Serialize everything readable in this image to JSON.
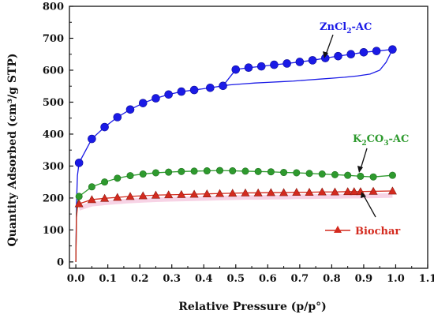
{
  "chart_data": {
    "type": "scatter",
    "title": "",
    "xlabel": "Relative Pressure (p/p°)",
    "ylabel": "Quantity Adsorbed (cm³/g STP)",
    "xlim": [
      -0.02,
      1.1
    ],
    "ylim": [
      -20,
      800
    ],
    "xticks": [
      "0.0",
      "0.1",
      "0.2",
      "0.3",
      "0.4",
      "0.5",
      "0.6",
      "0.7",
      "0.8",
      "0.9",
      "1.0",
      "1.1"
    ],
    "yticks": [
      "0",
      "100",
      "200",
      "300",
      "400",
      "500",
      "600",
      "700",
      "800"
    ],
    "series": [
      {
        "name": "ZnCl₂-AC",
        "color": "#1a1ae6",
        "marker": "circle",
        "adsorption": {
          "x": [
            0.01,
            0.05,
            0.09,
            0.13,
            0.17,
            0.21,
            0.25,
            0.29,
            0.33,
            0.37,
            0.42,
            0.46,
            0.5,
            0.54,
            0.58,
            0.62,
            0.66,
            0.7,
            0.74,
            0.78,
            0.82,
            0.86,
            0.9,
            0.94,
            0.99
          ],
          "y": [
            310,
            385,
            422,
            453,
            477,
            497,
            512,
            524,
            533,
            538,
            545,
            551,
            602,
            608,
            612,
            617,
            621,
            626,
            631,
            638,
            644,
            650,
            656,
            660,
            665
          ]
        },
        "desorption": {
          "x": [
            0.99,
            0.97,
            0.95,
            0.92,
            0.88,
            0.84,
            0.8,
            0.76,
            0.72,
            0.68,
            0.64,
            0.6,
            0.56,
            0.52,
            0.48,
            0.46
          ],
          "y": [
            665,
            625,
            600,
            588,
            582,
            578,
            575,
            572,
            569,
            566,
            564,
            562,
            560,
            557,
            554,
            551
          ]
        }
      },
      {
        "name": "K₂CO₃-AC",
        "color": "#2e9a2e",
        "marker": "circle",
        "adsorption": {
          "x": [
            0.01,
            0.05,
            0.09,
            0.13,
            0.17,
            0.21,
            0.25,
            0.29,
            0.33,
            0.37,
            0.41,
            0.45,
            0.49,
            0.53,
            0.57,
            0.61,
            0.65,
            0.69,
            0.73,
            0.77,
            0.81,
            0.85,
            0.89,
            0.93,
            0.99
          ],
          "y": [
            205,
            235,
            250,
            262,
            270,
            275,
            279,
            281,
            283,
            284,
            285,
            286,
            285,
            284,
            283,
            282,
            280,
            279,
            277,
            275,
            273,
            271,
            268,
            266,
            271
          ]
        }
      },
      {
        "name": "Biochar",
        "color": "#d42a1e",
        "marker": "triangle",
        "adsorption": {
          "x": [
            0.01,
            0.05,
            0.09,
            0.13,
            0.17,
            0.21,
            0.25,
            0.29,
            0.33,
            0.37,
            0.41,
            0.45,
            0.49,
            0.53,
            0.57,
            0.61,
            0.65,
            0.69,
            0.73,
            0.77,
            0.81,
            0.85,
            0.87,
            0.89,
            0.93,
            0.99
          ],
          "y": [
            182,
            195,
            199,
            202,
            205,
            207,
            209,
            210,
            211,
            212,
            213,
            214,
            215,
            216,
            216,
            217,
            217,
            218,
            218,
            219,
            219,
            220,
            220,
            220,
            221,
            222
          ]
        }
      }
    ],
    "labels": {
      "zncl2_main": "ZnCl",
      "zncl2_sub": "2",
      "zncl2_tail": "-AC",
      "k2co3_k": "K",
      "k2co3_sub1": "2",
      "k2co3_co": "CO",
      "k2co3_sub2": "3",
      "k2co3_tail": "-AC",
      "biochar": "Biochar"
    }
  }
}
